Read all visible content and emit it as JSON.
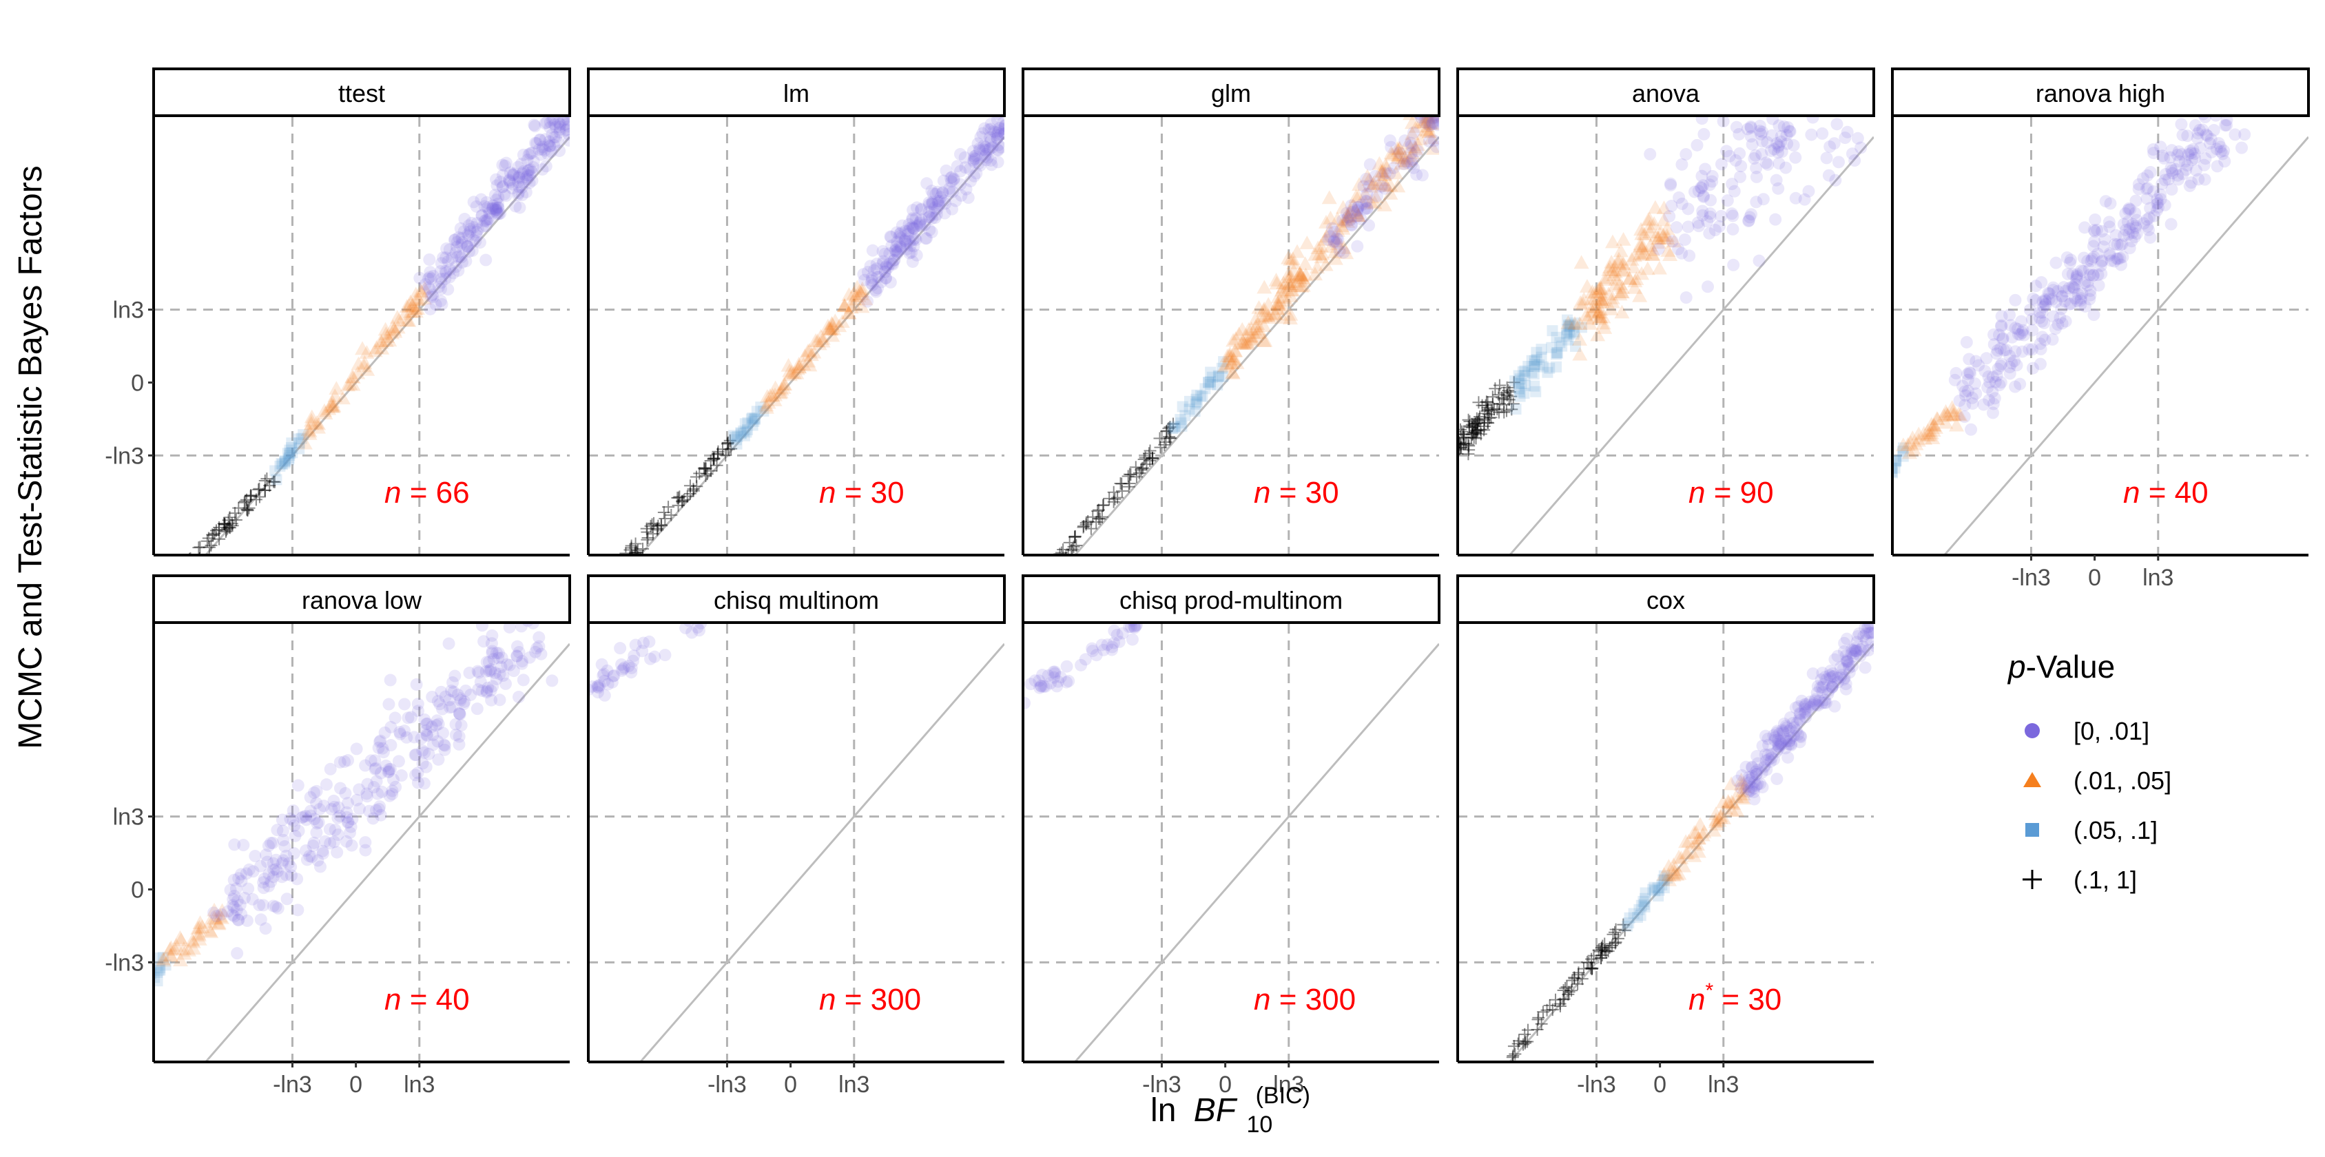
{
  "chart_data": {
    "type": "scatter",
    "y_axis_title": "MCMC and Test-Statistic Bayes Factors",
    "x_axis_title": {
      "prefix": "ln",
      "symbol": "BF",
      "subscript": "10",
      "superscript": "(BIC)"
    },
    "axis_range": {
      "x": [
        -3.5,
        3.7
      ],
      "y": [
        -2.6,
        4.0
      ]
    },
    "ticks": [
      {
        "label": "-ln3",
        "value": -1.0986
      },
      {
        "label": "0",
        "value": 0
      },
      {
        "label": "ln3",
        "value": 1.0986
      }
    ],
    "reference_lines": {
      "vertical": [
        "-ln3",
        "ln3"
      ],
      "horizontal": [
        "-ln3",
        "ln3"
      ],
      "diagonal": "y = x"
    },
    "legend": {
      "title_italic": "p",
      "title_rest": "-Value",
      "entries": [
        {
          "label": "[0, .01]",
          "shape": "circle",
          "color": "#7B68DD"
        },
        {
          "label": "(.01, .05]",
          "shape": "triangle",
          "color": "#F57F1E"
        },
        {
          "label": "(.05, .1]",
          "shape": "square",
          "color": "#5A9BD5"
        },
        {
          "label": "(.1, 1]",
          "shape": "plus",
          "color": "#000000"
        }
      ]
    },
    "panels": [
      {
        "name": "ttest",
        "n_prefix": "n",
        "n_star": "",
        "n_text": " = 66",
        "n": 66,
        "x_tick_labels": false,
        "groups": [
          {
            "cat": "(.1, 1]",
            "x": [
              -2.9,
              -1.4
            ],
            "y": [
              -2.75,
              -1.4
            ],
            "spread": 0.05,
            "count": 60,
            "double": true
          },
          {
            "cat": "(.05, .1]",
            "x": [
              -1.4,
              -0.85
            ],
            "y": [
              -1.35,
              -0.75
            ],
            "spread": 0.06,
            "count": 22
          },
          {
            "cat": "(.01, .05]",
            "x": [
              -0.85,
              1.2
            ],
            "y": [
              -0.75,
              1.35
            ],
            "spread": 0.07,
            "count": 70
          },
          {
            "cat": "[0, .01]",
            "x": [
              1.2,
              3.7
            ],
            "y": [
              1.35,
              4.05
            ],
            "spread": 0.18,
            "count": 220
          }
        ]
      },
      {
        "name": "lm",
        "n_prefix": "n",
        "n_star": "",
        "n_text": " = 30",
        "n": 30,
        "x_tick_labels": false,
        "groups": [
          {
            "cat": "(.1, 1]",
            "x": [
              -2.9,
              -1.0
            ],
            "y": [
              -2.7,
              -0.9
            ],
            "spread": 0.05,
            "count": 70,
            "double": true
          },
          {
            "cat": "(.05, .1]",
            "x": [
              -1.0,
              -0.45
            ],
            "y": [
              -0.9,
              -0.35
            ],
            "spread": 0.06,
            "count": 22
          },
          {
            "cat": "(.01, .05]",
            "x": [
              -0.45,
              1.3
            ],
            "y": [
              -0.35,
              1.45
            ],
            "spread": 0.07,
            "count": 70
          },
          {
            "cat": "[0, .01]",
            "x": [
              1.3,
              3.7
            ],
            "y": [
              1.45,
              3.85
            ],
            "spread": 0.17,
            "count": 210
          }
        ]
      },
      {
        "name": "glm",
        "n_prefix": "n",
        "n_star": "",
        "n_text": " = 30",
        "n": 30,
        "x_tick_labels": false,
        "groups": [
          {
            "cat": "(.1, 1]",
            "x": [
              -2.9,
              -0.9
            ],
            "y": [
              -2.7,
              -0.7
            ],
            "spread": 0.05,
            "count": 70,
            "double": true
          },
          {
            "cat": "(.05, .1]",
            "x": [
              -0.9,
              0.0
            ],
            "y": [
              -0.7,
              0.25
            ],
            "spread": 0.07,
            "count": 30
          },
          {
            "cat": "(.01, .05]",
            "x": [
              0.0,
              3.7
            ],
            "y": [
              0.25,
              4.1
            ],
            "spread": 0.17,
            "count": 230
          },
          {
            "cat": "[0, .01]",
            "x": [
              1.8,
              3.7
            ],
            "y": [
              2.1,
              4.0
            ],
            "spread": 0.2,
            "count": 80
          }
        ]
      },
      {
        "name": "anova",
        "n_prefix": "n",
        "n_star": "",
        "n_text": " = 90",
        "n": 90,
        "x_tick_labels": false,
        "groups": [
          {
            "cat": "(.1, 1]",
            "x": [
              -3.5,
              -2.55
            ],
            "y": [
              -1.0,
              -0.1
            ],
            "spread": 0.12,
            "count": 90
          },
          {
            "cat": "(.05, .1]",
            "x": [
              -2.55,
              -1.4
            ],
            "y": [
              -0.1,
              0.9
            ],
            "spread": 0.14,
            "count": 55
          },
          {
            "cat": "(.01, .05]",
            "x": [
              -1.4,
              0.2
            ],
            "y": [
              0.9,
              2.5
            ],
            "spread": 0.25,
            "count": 120
          },
          {
            "cat": "[0, .01]",
            "x": [
              0.2,
              3.2
            ],
            "y": [
              2.5,
              4.2
            ],
            "spread": 0.55,
            "count": 160
          }
        ]
      },
      {
        "name": "ranova high",
        "n_prefix": "n",
        "n_star": "",
        "n_text": " = 40",
        "n": 40,
        "x_tick_labels": true,
        "groups": [
          {
            "cat": "(.05, .1]",
            "x": [
              -3.5,
              -3.3
            ],
            "y": [
              -1.3,
              -1.05
            ],
            "spread": 0.06,
            "count": 10
          },
          {
            "cat": "(.01, .05]",
            "x": [
              -3.3,
              -2.3
            ],
            "y": [
              -1.05,
              -0.35
            ],
            "spread": 0.09,
            "count": 35
          },
          {
            "cat": "[0, .01]",
            "x": [
              -2.3,
              2.4
            ],
            "y": [
              -0.35,
              4.1
            ],
            "spread": 0.3,
            "count": 330
          }
        ]
      },
      {
        "name": "ranova low",
        "n_prefix": "n",
        "n_star": "",
        "n_text": " = 40",
        "n": 40,
        "x_tick_labels": true,
        "groups": [
          {
            "cat": "(.05, .1]",
            "x": [
              -3.5,
              -3.3
            ],
            "y": [
              -1.35,
              -1.05
            ],
            "spread": 0.06,
            "count": 10
          },
          {
            "cat": "(.01, .05]",
            "x": [
              -3.3,
              -2.3
            ],
            "y": [
              -1.05,
              -0.35
            ],
            "spread": 0.09,
            "count": 35
          },
          {
            "cat": "[0, .01]",
            "x": [
              -2.3,
              3.3
            ],
            "y": [
              -0.35,
              4.1
            ],
            "spread": 0.35,
            "count": 330
          }
        ]
      },
      {
        "name": "chisq multinom",
        "n_prefix": "n",
        "n_star": "",
        "n_text": " = 300",
        "n": 300,
        "x_tick_labels": true,
        "groups": [
          {
            "cat": "[0, .01]",
            "x": [
              -3.5,
              -1.5
            ],
            "y": [
              3.0,
              4.1
            ],
            "spread": 0.1,
            "count": 45
          }
        ]
      },
      {
        "name": "chisq prod-multinom",
        "n_prefix": "n",
        "n_star": "",
        "n_text": " = 300",
        "n": 300,
        "x_tick_labels": true,
        "groups": [
          {
            "cat": "[0, .01]",
            "x": [
              -3.5,
              -1.5
            ],
            "y": [
              2.9,
              4.0
            ],
            "spread": 0.1,
            "count": 45
          }
        ]
      },
      {
        "name": "cox",
        "n_prefix": "n",
        "n_star": "*",
        "n_text": " = 30",
        "n": 30,
        "x_tick_labels": true,
        "groups": [
          {
            "cat": "(.1, 1]",
            "x": [
              -2.6,
              -0.6
            ],
            "y": [
              -2.5,
              -0.55
            ],
            "spread": 0.05,
            "count": 70,
            "double": true
          },
          {
            "cat": "(.05, .1]",
            "x": [
              -0.6,
              0.15
            ],
            "y": [
              -0.55,
              0.2
            ],
            "spread": 0.07,
            "count": 25
          },
          {
            "cat": "(.01, .05]",
            "x": [
              0.15,
              1.5
            ],
            "y": [
              0.2,
              1.6
            ],
            "spread": 0.08,
            "count": 55
          },
          {
            "cat": "[0, .01]",
            "x": [
              1.3,
              3.7
            ],
            "y": [
              1.4,
              3.9
            ],
            "spread": 0.15,
            "count": 200
          }
        ]
      }
    ]
  }
}
